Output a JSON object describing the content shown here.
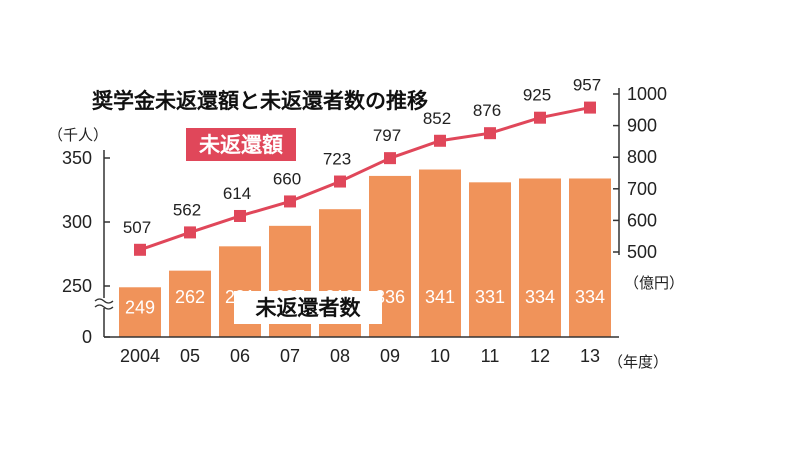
{
  "chart_data": {
    "type": "bar+line",
    "title": "奨学金未返還額と未返還者数の推移",
    "left_unit": "（千人）",
    "right_unit": "（億円）",
    "x_unit": "（年度）",
    "categories": [
      "2004",
      "05",
      "06",
      "07",
      "08",
      "09",
      "10",
      "11",
      "12",
      "13"
    ],
    "series": [
      {
        "name": "未返還者数",
        "kind": "bar",
        "axis": "left",
        "values": [
          249,
          262,
          281,
          297,
          310,
          336,
          341,
          331,
          334,
          334
        ]
      },
      {
        "name": "未返還額",
        "kind": "line",
        "axis": "right",
        "values": [
          507,
          562,
          614,
          660,
          723,
          797,
          852,
          876,
          925,
          957
        ]
      }
    ],
    "left_ticks": [
      "350",
      "300",
      "250",
      "0"
    ],
    "left_axis_break": true,
    "right_ticks": [
      "1000",
      "900",
      "800",
      "700",
      "600",
      "500"
    ],
    "left_ylim": [
      0,
      350
    ],
    "right_ylim": [
      500,
      1000
    ],
    "grid": false,
    "colors": {
      "bar": "#f0935a",
      "line": "#e0475a",
      "legend_box": "#e0475a"
    }
  }
}
